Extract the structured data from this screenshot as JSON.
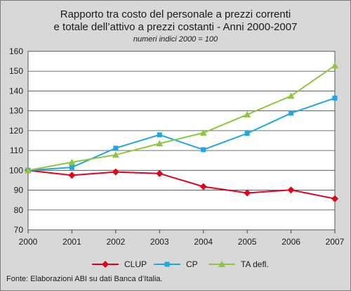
{
  "chart_data": {
    "type": "line",
    "title": [
      "Rapporto tra costo del personale a prezzi correnti",
      "e totale dell’attivo a prezzi costanti - Anni 2000-2007"
    ],
    "subtitle": "numeri indici 2000 = 100",
    "x": [
      "2000",
      "2001",
      "2002",
      "2003",
      "2004",
      "2005",
      "2006",
      "2007"
    ],
    "ylim": [
      70,
      160
    ],
    "yticks": [
      "70",
      "80",
      "90",
      "100",
      "110",
      "120",
      "130",
      "140",
      "150",
      "160"
    ],
    "grid": true,
    "legend_position": "bottom",
    "series": [
      {
        "name": "CLUP",
        "color": "#e3001b",
        "marker": "diamond",
        "values": [
          100,
          97.5,
          99.2,
          98.4,
          91.8,
          88.6,
          90.1,
          85.7
        ]
      },
      {
        "name": "CP",
        "color": "#1ea7e1",
        "marker": "square",
        "values": [
          100,
          101.5,
          111.2,
          117.9,
          110.4,
          118.6,
          128.8,
          136.4
        ]
      },
      {
        "name": "TA defl.",
        "color": "#8dc63f",
        "marker": "triangle",
        "values": [
          100,
          104.1,
          107.8,
          113.5,
          118.9,
          128.1,
          137.5,
          152.8
        ]
      }
    ]
  },
  "source": "Fonte: Elaborazioni ABI su dati Banca d’Italia."
}
